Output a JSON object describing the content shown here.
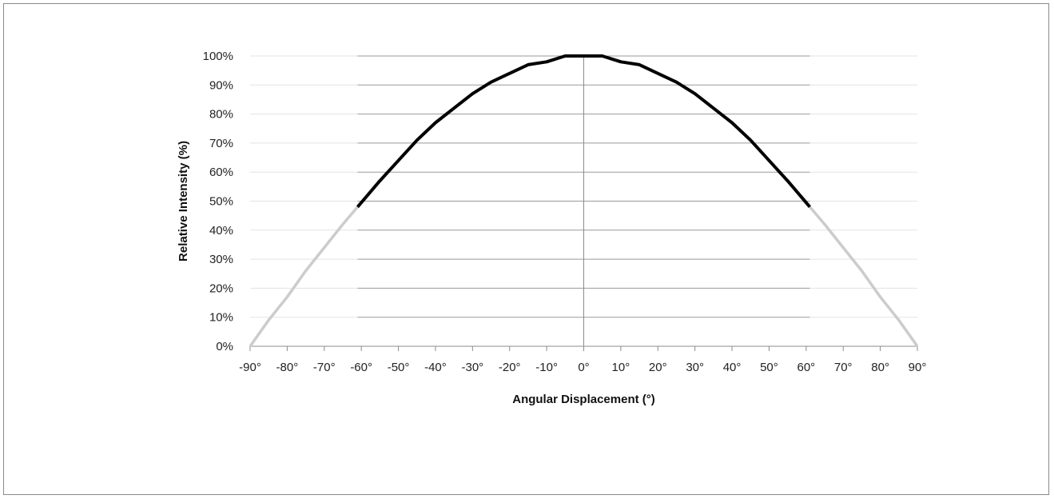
{
  "chart_data": {
    "type": "line",
    "title": "",
    "xlabel": "Angular Displacement (°)",
    "ylabel": "Relative Intensity (%)",
    "xlim": [
      -90,
      90
    ],
    "ylim": [
      0,
      100
    ],
    "x_ticks": [
      "-90°",
      "-80°",
      "-70°",
      "-60°",
      "-50°",
      "-40°",
      "-30°",
      "-20°",
      "-10°",
      "0°",
      "10°",
      "20°",
      "30°",
      "40°",
      "50°",
      "60°",
      "70°",
      "80°",
      "90°"
    ],
    "y_ticks": [
      "0%",
      "10%",
      "20%",
      "30%",
      "40%",
      "50%",
      "60%",
      "70%",
      "80%",
      "90%",
      "100%"
    ],
    "grid": "horizontal",
    "legend": "none",
    "series": [
      {
        "color": "#cccccc",
        "x": [
          -90,
          -85,
          -80,
          -75,
          -70,
          -65,
          -61
        ],
        "y": [
          0,
          9,
          17,
          26,
          34,
          42,
          48
        ]
      },
      {
        "color": "#000000",
        "x": [
          -61,
          -55,
          -50,
          -45,
          -40,
          -35,
          -30,
          -25,
          -20,
          -15,
          -10,
          -5,
          0,
          5,
          10,
          15,
          20,
          25,
          30,
          35,
          40,
          45,
          50,
          55,
          61
        ],
        "y": [
          48,
          57,
          64,
          71,
          77,
          82,
          87,
          91,
          94,
          97,
          98,
          100,
          100,
          100,
          98,
          97,
          94,
          91,
          87,
          82,
          77,
          71,
          64,
          57,
          48
        ]
      },
      {
        "color": "#cccccc",
        "x": [
          61,
          65,
          70,
          75,
          80,
          85,
          90
        ],
        "y": [
          48,
          42,
          34,
          26,
          17,
          9,
          0
        ]
      }
    ]
  }
}
